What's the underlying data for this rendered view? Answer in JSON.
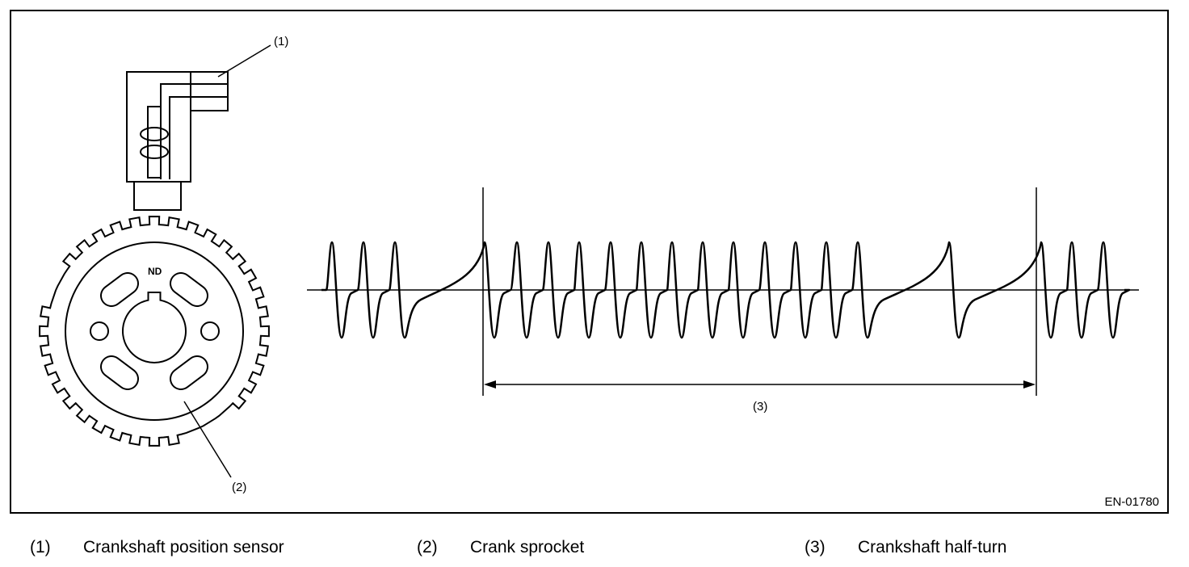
{
  "figure": {
    "figure_id": "EN-01780",
    "sensor_callout": "(1)",
    "sprocket_callout": "(2)",
    "half_turn_callout": "(3)",
    "sprocket_marking": "ND"
  },
  "legend": [
    {
      "number": "(1)",
      "label": "Crankshaft position sensor"
    },
    {
      "number": "(2)",
      "label": "Crank sprocket"
    },
    {
      "number": "(3)",
      "label": "Crankshaft half-turn"
    }
  ]
}
